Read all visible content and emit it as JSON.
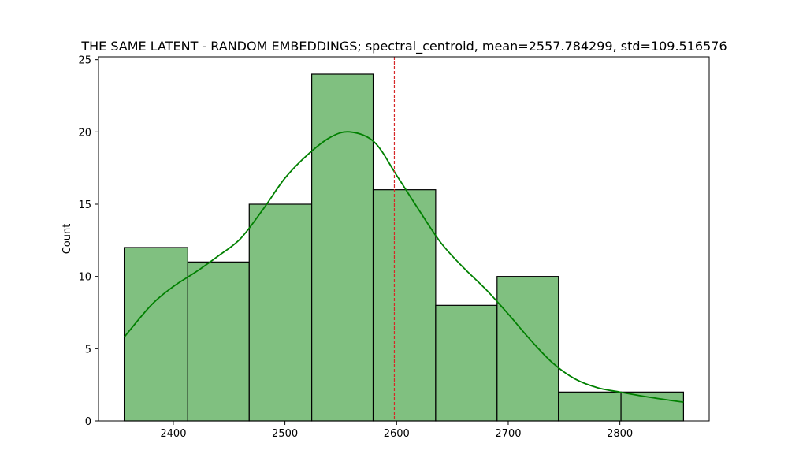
{
  "chart_data": {
    "type": "bar",
    "title": "THE SAME LATENT - RANDOM EMBEDDINGS; spectral_centroid, mean=2557.784299, std=109.516576",
    "xlabel": "",
    "ylabel": "Count",
    "xlim": [
      2333,
      2880
    ],
    "ylim": [
      0,
      25.2
    ],
    "x_ticks": [
      2400,
      2500,
      2600,
      2700,
      2800
    ],
    "y_ticks": [
      0,
      5,
      10,
      15,
      20,
      25
    ],
    "bins": [
      {
        "start": 2356,
        "end": 2413,
        "count": 12
      },
      {
        "start": 2413,
        "end": 2468,
        "count": 11
      },
      {
        "start": 2468,
        "end": 2524,
        "count": 15
      },
      {
        "start": 2524,
        "end": 2579,
        "count": 24
      },
      {
        "start": 2579,
        "end": 2635,
        "count": 16
      },
      {
        "start": 2635,
        "end": 2690,
        "count": 8
      },
      {
        "start": 2690,
        "end": 2745,
        "count": 10
      },
      {
        "start": 2745,
        "end": 2801,
        "count": 2
      },
      {
        "start": 2801,
        "end": 2857,
        "count": 2
      }
    ],
    "kde_curve": {
      "x": [
        2356,
        2380,
        2400,
        2420,
        2440,
        2460,
        2480,
        2500,
        2520,
        2540,
        2558,
        2580,
        2600,
        2620,
        2640,
        2660,
        2680,
        2700,
        2720,
        2740,
        2760,
        2780,
        2800,
        2830,
        2857
      ],
      "y": [
        5.8,
        8.0,
        9.3,
        10.3,
        11.4,
        12.6,
        14.6,
        16.8,
        18.4,
        19.6,
        20.0,
        19.3,
        17.0,
        14.6,
        12.3,
        10.6,
        9.1,
        7.4,
        5.6,
        4.0,
        2.9,
        2.3,
        2.0,
        1.6,
        1.3
      ]
    },
    "vline": {
      "x": 2598,
      "color": "#d62728",
      "style": "dashed"
    },
    "bar_fill": "#80c080",
    "bar_edge": "#000000",
    "kde_color": "#008000",
    "grid": false,
    "legend": "none"
  }
}
